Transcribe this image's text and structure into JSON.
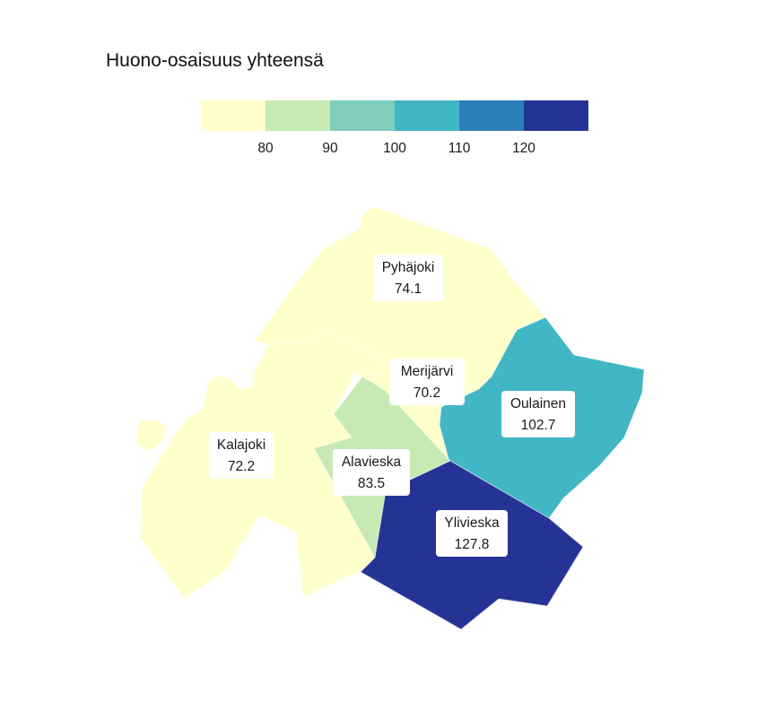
{
  "title": "Huono-osaisuus yhteensä",
  "legend": {
    "bins": [
      {
        "color": "#ffffcc"
      },
      {
        "color": "#c7e9b4"
      },
      {
        "color": "#7fcdbb"
      },
      {
        "color": "#41b6c4"
      },
      {
        "color": "#2c7fb8"
      },
      {
        "color": "#253494"
      }
    ],
    "ticks": [
      "80",
      "90",
      "100",
      "110",
      "120"
    ]
  },
  "regions": [
    {
      "id": "pyhajoki",
      "name": "Pyhäjoki",
      "value": "74.1",
      "color": "#ffffcc"
    },
    {
      "id": "merijarvi",
      "name": "Merijärvi",
      "value": "70.2",
      "color": "#ffffcc"
    },
    {
      "id": "kalajoki",
      "name": "Kalajoki",
      "value": "72.2",
      "color": "#ffffcc"
    },
    {
      "id": "alavieska",
      "name": "Alavieska",
      "value": "83.5",
      "color": "#c7e9b4"
    },
    {
      "id": "oulainen",
      "name": "Oulainen",
      "value": "102.7",
      "color": "#41b6c4"
    },
    {
      "id": "ylivieska",
      "name": "Ylivieska",
      "value": "127.8",
      "color": "#253494"
    }
  ]
}
